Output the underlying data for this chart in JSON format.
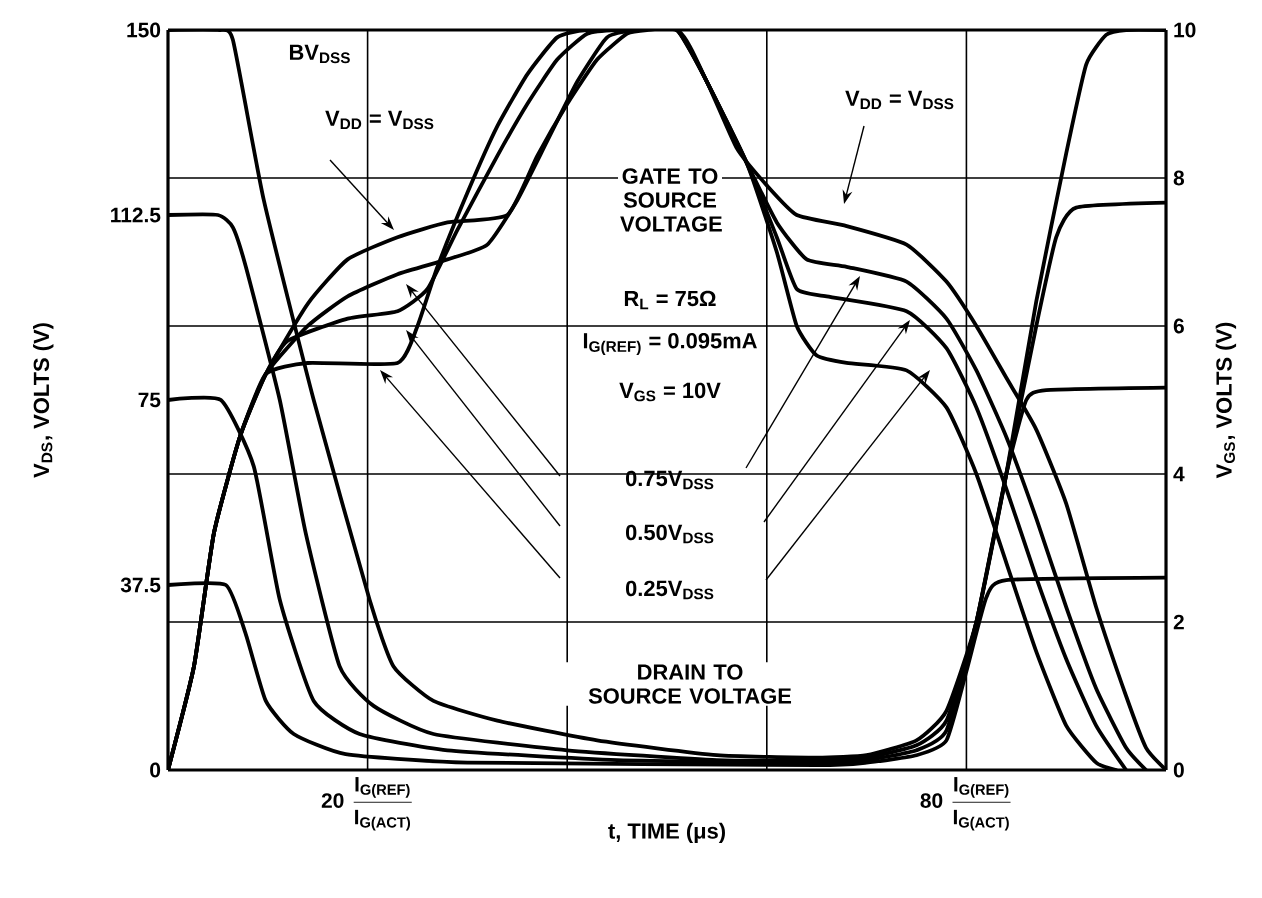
{
  "chart_data": {
    "type": "line",
    "xlabel": "t, TIME (μs)",
    "ylabel": "V$_{DS}$, VOLTS (V)",
    "y2label": "V$_{GS}$, VOLTS (V)",
    "xlim": [
      0,
      100
    ],
    "ylim": [
      0,
      150
    ],
    "y2lim": [
      0,
      10
    ],
    "xticks": [
      {
        "value": 20,
        "label": "\\text{20}\\;\\dfrac{\\text{I}_{\\text{G(REF)}}}{\\text{I}_{\\text{G(ACT)}}}"
      },
      {
        "value": 40,
        "label": null
      },
      {
        "value": 60,
        "label": null
      },
      {
        "value": 80,
        "label": "\\text{80}\\;\\dfrac{\\text{I}_{\\text{G(REF)}}}{\\text{I}_{\\text{G(ACT)}}}"
      }
    ],
    "yticks": [
      0,
      37.5,
      75,
      112.5,
      150
    ],
    "y2ticks": [
      0,
      2,
      4,
      6,
      8,
      10
    ],
    "grid": true,
    "marker": "none",
    "line_style": "solid",
    "annotations": [
      "BV$_{DSS}$",
      "V$_{DD}$ = V$_{DSS}$",
      "GATE TO SOURCE VOLTAGE",
      "R$_{L}$ = 75Ω",
      "I$_{G(REF)}$ = 0.095mA",
      "V$_{GS}$ = 10V",
      "0.75V$_{DSS}$",
      "0.50V$_{DSS}$",
      "0.25V$_{DSS}$",
      "DRAIN TO SOURCE VOLTAGE",
      "V$_{DD}$ = V$_{DSS}$"
    ],
    "series": [
      {
        "color": "#000000",
        "x": [
          0,
          5,
          6.5,
          9.6,
          14.6,
          20.2,
          22.6,
          26.6,
          33,
          43,
          55,
          65,
          70,
          75,
          78,
          81,
          84,
          87,
          90,
          92,
          94,
          96,
          100
        ],
        "values": [
          150,
          150,
          148,
          115.5,
          75,
          34.5,
          21,
          14,
          10,
          6,
          3,
          2.5,
          3,
          6,
          12,
          30,
          60,
          95,
          125,
          143,
          149,
          150,
          150
        ]
      },
      {
        "color": "#000000",
        "x": [
          0,
          5,
          6.5,
          7.8,
          11.2,
          13.8,
          17.2,
          20.6,
          26.6,
          40,
          55,
          65,
          70,
          75,
          78,
          81,
          84,
          87,
          89,
          91,
          100
        ],
        "values": [
          112.5,
          112.5,
          110,
          102,
          75,
          48,
          21,
          13,
          7.3,
          4,
          2,
          2,
          2.5,
          5,
          10,
          30,
          60,
          90,
          108,
          114,
          115
        ]
      },
      {
        "color": "#000000",
        "x": [
          0,
          5.3,
          8.6,
          11.2,
          14.6,
          19.2,
          28,
          45,
          65,
          70,
          75,
          78,
          81,
          84,
          86,
          88,
          100
        ],
        "values": [
          75,
          75,
          61.5,
          34.5,
          14,
          7.3,
          4,
          2,
          1.5,
          2,
          4,
          8,
          30,
          60,
          75,
          77,
          77.5
        ]
      },
      {
        "color": "#000000",
        "x": [
          0,
          5.8,
          7.8,
          9.8,
          12.6,
          17.8,
          30,
          65,
          70,
          75,
          78,
          80,
          82,
          84,
          100
        ],
        "values": [
          37.5,
          37.5,
          27.5,
          14,
          7.3,
          3.2,
          1.5,
          1,
          1.5,
          3,
          6,
          20,
          35,
          38.5,
          39
        ]
      },
      {
        "axis": "y2",
        "color": "#000000",
        "x": [
          0,
          2.6,
          4.6,
          7.2,
          9.8,
          14,
          18,
          23,
          28,
          34,
          37,
          40,
          43,
          46,
          48,
          51,
          54,
          57,
          60,
          63,
          68,
          74,
          78,
          81,
          84,
          87,
          90,
          93,
          96,
          98,
          100
        ],
        "values": [
          0,
          1.4,
          3.2,
          4.5,
          5.35,
          6.3,
          6.9,
          7.2,
          7.4,
          7.5,
          8.3,
          9,
          9.6,
          9.95,
          10,
          10,
          9.3,
          8.4,
          7.9,
          7.5,
          7.35,
          7.1,
          6.6,
          6,
          5.3,
          4.6,
          3.6,
          2.2,
          1,
          0.3,
          0
        ]
      },
      {
        "axis": "y2",
        "color": "#000000",
        "x": [
          0,
          2.6,
          4.6,
          7.2,
          9.8,
          14,
          18,
          23,
          28,
          32,
          35,
          38,
          41,
          44,
          47,
          51,
          54,
          58,
          61,
          64,
          68,
          74,
          78,
          81,
          84,
          87,
          90,
          93,
          96,
          98
        ],
        "values": [
          0,
          1.4,
          3.2,
          4.5,
          5.35,
          6,
          6.4,
          6.7,
          6.9,
          7.1,
          7.7,
          8.5,
          9.3,
          9.9,
          10,
          10,
          9.3,
          8.2,
          7.4,
          6.9,
          6.8,
          6.6,
          6.1,
          5.4,
          4.5,
          3.4,
          2.2,
          1.1,
          0.3,
          0
        ]
      },
      {
        "axis": "y2",
        "color": "#000000",
        "x": [
          0,
          2.6,
          4.6,
          7.2,
          9.8,
          12,
          18,
          23,
          26,
          29,
          33,
          36,
          39,
          42,
          45,
          51,
          54,
          58,
          61,
          63,
          66,
          74,
          78,
          81,
          84,
          87,
          90,
          93,
          96
        ],
        "values": [
          0,
          1.4,
          3.2,
          4.5,
          5.35,
          5.8,
          6.1,
          6.2,
          6.5,
          7.3,
          8.3,
          9,
          9.6,
          9.95,
          10,
          10,
          9.3,
          8.2,
          7.2,
          6.5,
          6.4,
          6.2,
          5.7,
          4.9,
          3.8,
          2.6,
          1.5,
          0.6,
          0
        ]
      },
      {
        "axis": "y2",
        "color": "#000000",
        "x": [
          0,
          2.6,
          4.6,
          7.2,
          9.8,
          14,
          23,
          25,
          27,
          30,
          33,
          36,
          39,
          42,
          51,
          54,
          58,
          61,
          63,
          65,
          68,
          74,
          78,
          81,
          84,
          87,
          90,
          93,
          95
        ],
        "values": [
          0,
          1.4,
          3.2,
          4.5,
          5.35,
          5.5,
          5.5,
          6,
          6.8,
          7.8,
          8.7,
          9.4,
          9.9,
          10,
          10,
          9.3,
          8.2,
          7,
          6,
          5.6,
          5.5,
          5.4,
          4.9,
          4,
          2.8,
          1.6,
          0.6,
          0.1,
          0
        ]
      }
    ]
  }
}
